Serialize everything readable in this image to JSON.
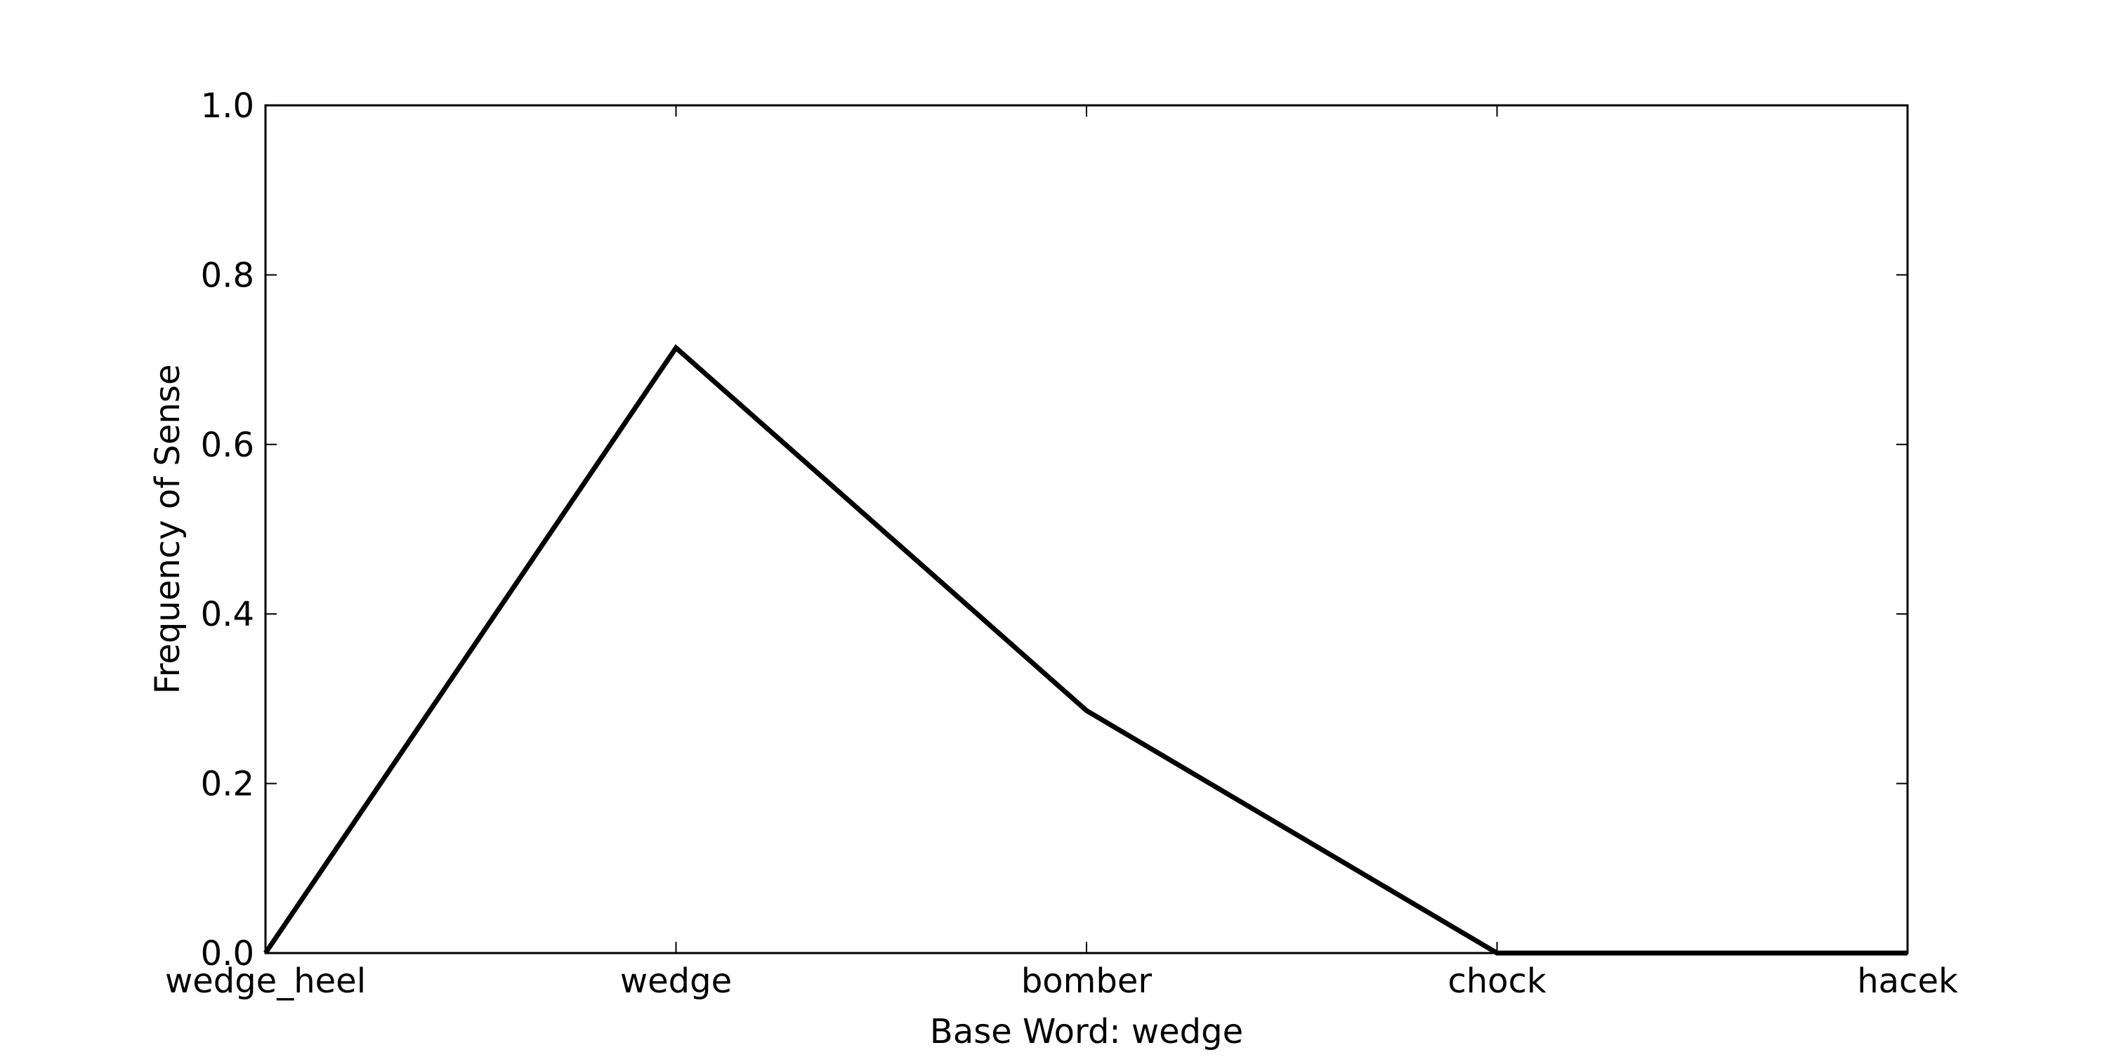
{
  "chart_data": {
    "type": "line",
    "categories": [
      "wedge_heel",
      "wedge",
      "bomber",
      "chock",
      "hacek"
    ],
    "series": [
      {
        "values": [
          0.0,
          0.714,
          0.286,
          0.0,
          0.0
        ]
      }
    ],
    "xlabel": "Base Word: wedge",
    "ylabel": "Frequency of Sense",
    "ylim": [
      0,
      1.0
    ],
    "yticks": [
      "0.0",
      "0.2",
      "0.4",
      "0.6",
      "0.8",
      "1.0"
    ],
    "grid": false,
    "line_color": "#000000"
  }
}
